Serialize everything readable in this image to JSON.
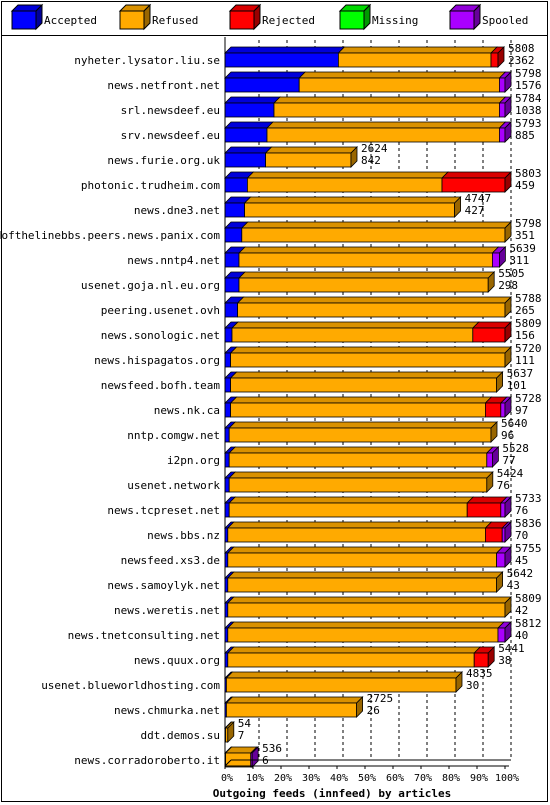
{
  "chart_data": {
    "type": "bar",
    "stacked": true,
    "orientation": "horizontal",
    "scale": "percent",
    "xlabel": "Outgoing feeds (innfeed) by articles",
    "xticks": [
      "0%",
      "10%",
      "20%",
      "30%",
      "40%",
      "50%",
      "60%",
      "70%",
      "80%",
      "90%",
      "100%"
    ],
    "legend": {
      "position": "top",
      "entries": [
        {
          "name": "Accepted",
          "color": "#0000ff"
        },
        {
          "name": "Refused",
          "color": "#ffaa00"
        },
        {
          "name": "Rejected",
          "color": "#ff0000"
        },
        {
          "name": "Missing",
          "color": "#00ff00"
        },
        {
          "name": "Spooled",
          "color": "#aa00ff"
        }
      ]
    },
    "colors": {
      "accepted": "#0000ff",
      "refused": "#ffaa00",
      "rejected": "#ff0000",
      "missing": "#00ff00",
      "spooled": "#aa00ff"
    },
    "rows": [
      {
        "host": "nyheter.lysator.liu.se",
        "total": "5808",
        "accepted_count": "2362",
        "accepted": 40.5,
        "refused": 54.5,
        "rejected": 2.5,
        "missing": 0,
        "spooled": 0
      },
      {
        "host": "news.netfront.net",
        "total": "5798",
        "accepted_count": "1576",
        "accepted": 26.5,
        "refused": 71.5,
        "rejected": 0,
        "missing": 0,
        "spooled": 2
      },
      {
        "host": "srl.newsdeef.eu",
        "total": "5784",
        "accepted_count": "1038",
        "accepted": 17.5,
        "refused": 80.5,
        "rejected": 0,
        "missing": 0,
        "spooled": 2
      },
      {
        "host": "srv.newsdeef.eu",
        "total": "5793",
        "accepted_count": "885",
        "accepted": 15,
        "refused": 83,
        "rejected": 0,
        "missing": 0,
        "spooled": 2
      },
      {
        "host": "news.furie.org.uk",
        "total": "2624",
        "accepted_count": "842",
        "accepted": 14.5,
        "refused": 30.5,
        "rejected": 0,
        "missing": 0,
        "spooled": 0
      },
      {
        "host": "photonic.trudheim.com",
        "total": "5803",
        "accepted_count": "459",
        "accepted": 8,
        "refused": 69.5,
        "rejected": 22.5,
        "missing": 0,
        "spooled": 0
      },
      {
        "host": "news.dne3.net",
        "total": "4747",
        "accepted_count": "427",
        "accepted": 7,
        "refused": 75,
        "rejected": 0,
        "missing": 0,
        "spooled": 0
      },
      {
        "host": "endofthelinebbs.peers.news.panix.com",
        "total": "5798",
        "accepted_count": "351",
        "accepted": 6,
        "refused": 94,
        "rejected": 0,
        "missing": 0,
        "spooled": 0
      },
      {
        "host": "news.nntp4.net",
        "total": "5639",
        "accepted_count": "311",
        "accepted": 5,
        "refused": 90.5,
        "rejected": 0,
        "missing": 0,
        "spooled": 2.5
      },
      {
        "host": "usenet.goja.nl.eu.org",
        "total": "5505",
        "accepted_count": "298",
        "accepted": 5,
        "refused": 89,
        "rejected": 0,
        "missing": 0,
        "spooled": 0
      },
      {
        "host": "peering.usenet.ovh",
        "total": "5788",
        "accepted_count": "265",
        "accepted": 4.5,
        "refused": 95.5,
        "rejected": 0,
        "missing": 0,
        "spooled": 0
      },
      {
        "host": "news.sonologic.net",
        "total": "5809",
        "accepted_count": "156",
        "accepted": 2.5,
        "refused": 86,
        "rejected": 11.5,
        "missing": 0,
        "spooled": 0
      },
      {
        "host": "news.hispagatos.org",
        "total": "5720",
        "accepted_count": "111",
        "accepted": 2,
        "refused": 98,
        "rejected": 0,
        "missing": 0,
        "spooled": 0
      },
      {
        "host": "newsfeed.bofh.team",
        "total": "5637",
        "accepted_count": "101",
        "accepted": 2,
        "refused": 95,
        "rejected": 0,
        "missing": 0,
        "spooled": 0
      },
      {
        "host": "news.nk.ca",
        "total": "5728",
        "accepted_count": "97",
        "accepted": 2,
        "refused": 91,
        "rejected": 5.5,
        "missing": 0,
        "spooled": 1.5
      },
      {
        "host": "nntp.comgw.net",
        "total": "5640",
        "accepted_count": "96",
        "accepted": 1.5,
        "refused": 93.5,
        "rejected": 0,
        "missing": 0,
        "spooled": 0
      },
      {
        "host": "i2pn.org",
        "total": "5528",
        "accepted_count": "77",
        "accepted": 1.5,
        "refused": 92,
        "rejected": 0,
        "missing": 0,
        "spooled": 2
      },
      {
        "host": "usenet.network",
        "total": "5424",
        "accepted_count": "76",
        "accepted": 1.5,
        "refused": 92,
        "rejected": 0,
        "missing": 0,
        "spooled": 0
      },
      {
        "host": "news.tcpreset.net",
        "total": "5733",
        "accepted_count": "76",
        "accepted": 1.5,
        "refused": 85,
        "rejected": 12,
        "missing": 0,
        "spooled": 1.5
      },
      {
        "host": "news.bbs.nz",
        "total": "5836",
        "accepted_count": "70",
        "accepted": 1,
        "refused": 92,
        "rejected": 6,
        "missing": 0,
        "spooled": 1
      },
      {
        "host": "newsfeed.xs3.de",
        "total": "5755",
        "accepted_count": "45",
        "accepted": 1,
        "refused": 96,
        "rejected": 0,
        "missing": 0,
        "spooled": 3
      },
      {
        "host": "news.samoylyk.net",
        "total": "5642",
        "accepted_count": "43",
        "accepted": 1,
        "refused": 96,
        "rejected": 0,
        "missing": 0,
        "spooled": 0
      },
      {
        "host": "news.weretis.net",
        "total": "5809",
        "accepted_count": "42",
        "accepted": 1,
        "refused": 99,
        "rejected": 0,
        "missing": 0,
        "spooled": 0
      },
      {
        "host": "news.tnetconsulting.net",
        "total": "5812",
        "accepted_count": "40",
        "accepted": 1,
        "refused": 96.5,
        "rejected": 0,
        "missing": 0,
        "spooled": 2.5
      },
      {
        "host": "news.quux.org",
        "total": "5441",
        "accepted_count": "38",
        "accepted": 1,
        "refused": 88,
        "rejected": 5,
        "missing": 0,
        "spooled": 0
      },
      {
        "host": "usenet.blueworldhosting.com",
        "total": "4835",
        "accepted_count": "30",
        "accepted": 0.5,
        "refused": 82,
        "rejected": 0,
        "missing": 0,
        "spooled": 0
      },
      {
        "host": "news.chmurka.net",
        "total": "2725",
        "accepted_count": "26",
        "accepted": 0.5,
        "refused": 46.5,
        "rejected": 0,
        "missing": 0,
        "spooled": 0
      },
      {
        "host": "ddt.demos.su",
        "total": "54",
        "accepted_count": "7",
        "accepted": 0.2,
        "refused": 0.8,
        "rejected": 0,
        "missing": 0,
        "spooled": 0
      },
      {
        "host": "news.corradoroberto.it",
        "total": "536",
        "accepted_count": "6",
        "accepted": 0.2,
        "refused": 9,
        "rejected": 0,
        "missing": 0,
        "spooled": 0.5
      }
    ]
  }
}
